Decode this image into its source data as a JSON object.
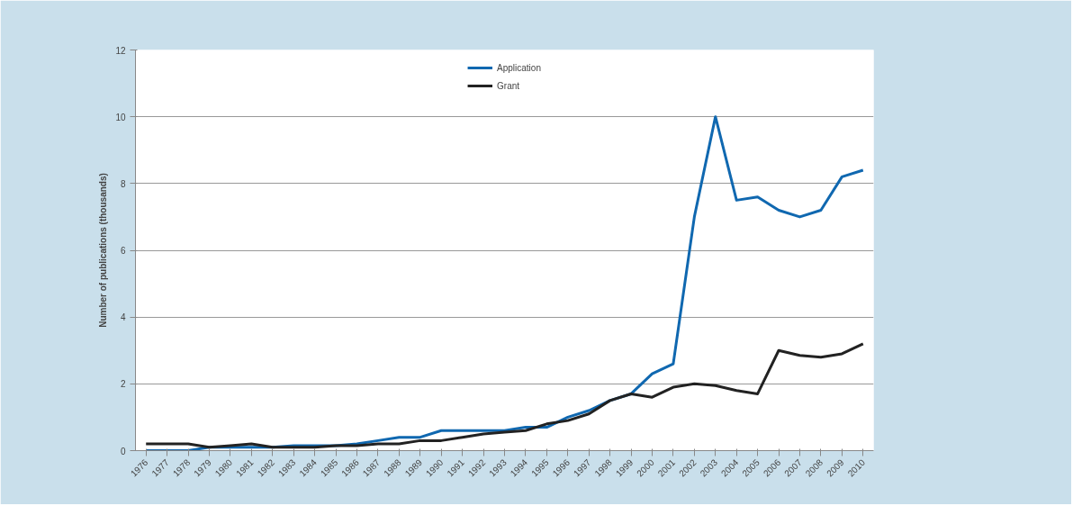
{
  "chart_data": {
    "type": "line",
    "ylabel": "Number of publications (thousands)",
    "categories": [
      "1976",
      "1977",
      "1978",
      "1979",
      "1980",
      "1981",
      "1982",
      "1983",
      "1984",
      "1985",
      "1986",
      "1987",
      "1988",
      "1989",
      "1990",
      "1991",
      "1992",
      "1993",
      "1994",
      "1995",
      "1996",
      "1997",
      "1998",
      "1999",
      "2000",
      "2001",
      "2002",
      "2003",
      "2004",
      "2005",
      "2006",
      "2007",
      "2008",
      "2009",
      "2010"
    ],
    "series": [
      {
        "name": "Application",
        "color": "#1068b0",
        "values": [
          0,
          0,
          0,
          0.1,
          0.1,
          0.1,
          0.1,
          0.15,
          0.15,
          0.15,
          0.2,
          0.3,
          0.4,
          0.4,
          0.6,
          0.6,
          0.6,
          0.6,
          0.7,
          0.7,
          1.0,
          1.2,
          1.5,
          1.7,
          2.3,
          2.6,
          7.0,
          10.0,
          7.5,
          7.6,
          7.2,
          7.0,
          7.2,
          8.2,
          8.4
        ]
      },
      {
        "name": "Grant",
        "color": "#222222",
        "values": [
          0.2,
          0.2,
          0.2,
          0.1,
          0.15,
          0.2,
          0.1,
          0.1,
          0.1,
          0.15,
          0.15,
          0.2,
          0.2,
          0.3,
          0.3,
          0.4,
          0.5,
          0.55,
          0.6,
          0.8,
          0.9,
          1.1,
          1.5,
          1.7,
          1.6,
          1.9,
          2.0,
          1.95,
          1.8,
          1.7,
          3.0,
          2.85,
          2.8,
          2.9,
          3.2
        ]
      }
    ],
    "ylim": [
      0,
      12
    ],
    "yticks": [
      0,
      2,
      4,
      6,
      8,
      10,
      12
    ],
    "grid": "y",
    "legend": "top",
    "marker": "none",
    "line_style": "solid"
  }
}
